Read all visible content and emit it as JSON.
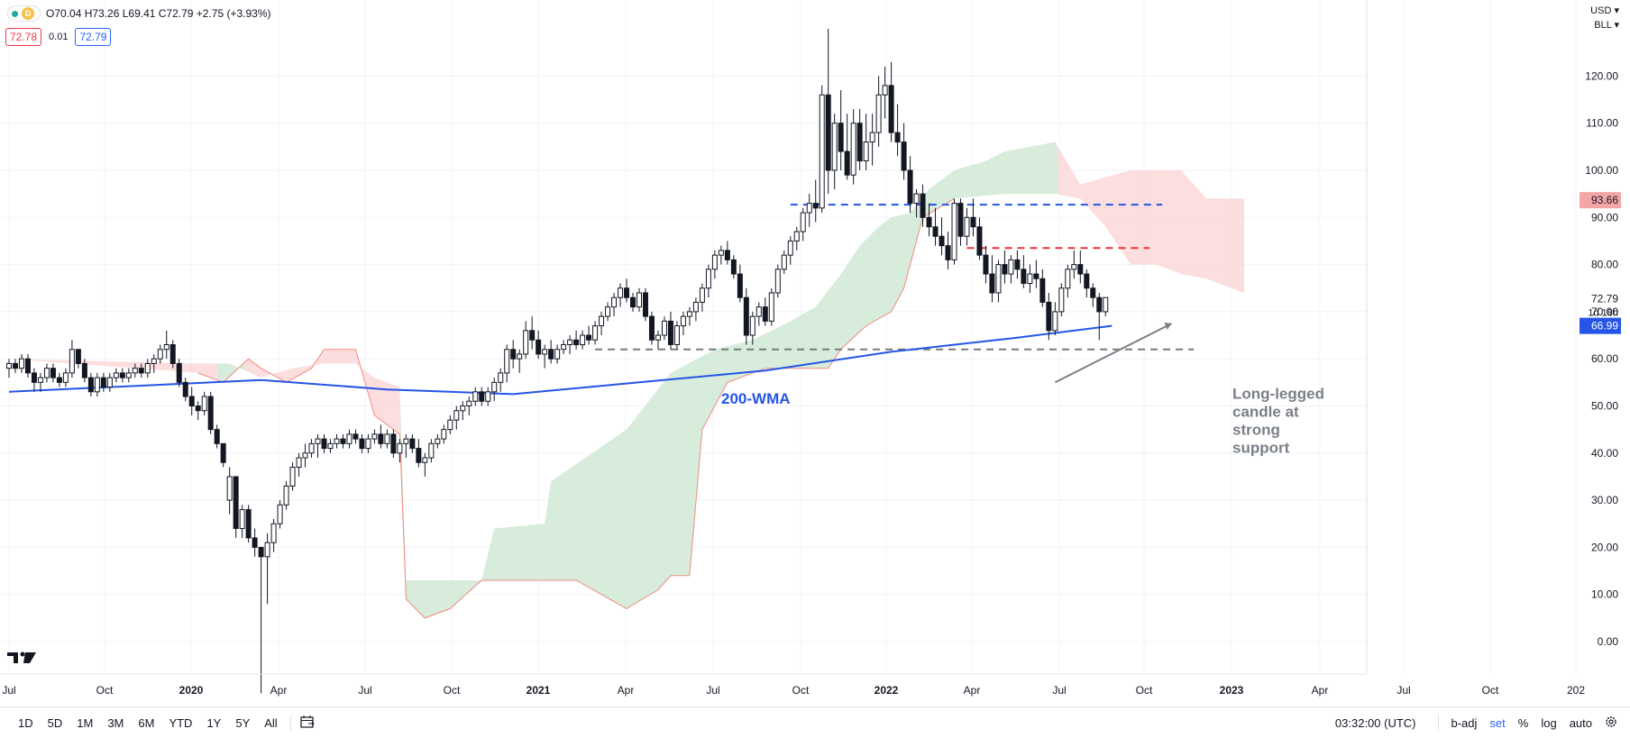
{
  "header": {
    "interval_badge": "D",
    "ohlc": "O70.04 H73.26 L69.41 C72.79 +2.75 (+3.93%)",
    "bid": "72.78",
    "spread": "0.01",
    "ask": "72.79",
    "currency": "USD",
    "unit": "BLL"
  },
  "bottom": {
    "timeframes": [
      "1D",
      "5D",
      "1M",
      "3M",
      "6M",
      "YTD",
      "1Y",
      "5Y",
      "All"
    ],
    "clock": "03:32:00 (UTC)",
    "badj": "b-adj",
    "set": "set",
    "percent": "%",
    "log": "log",
    "auto": "auto"
  },
  "colors": {
    "wma": "#2455e6",
    "bull_cloud": "#c9e6cf",
    "bear_cloud": "#fbd3d3",
    "resistance": "#e53935",
    "support_dash": "#7a7a7a",
    "blue_dash": "#2455e6",
    "annotation": "#7a7f87",
    "price_label_red": "#f4a6a6",
    "price_label_blue": "#2455e6"
  },
  "chart_data": {
    "type": "candlestick",
    "ylim": [
      -5,
      130
    ],
    "y_ticks": [
      "0.00",
      "10.00",
      "20.00",
      "30.00",
      "40.00",
      "50.00",
      "60.00",
      "70.00",
      "80.00",
      "90.00",
      "100.00",
      "110.00",
      "120.00"
    ],
    "x_ticks": [
      "Jul",
      "Oct",
      "2020",
      "Apr",
      "Jul",
      "Oct",
      "2021",
      "Apr",
      "Jul",
      "Oct",
      "2022",
      "Apr",
      "Jul",
      "Oct",
      "2023",
      "Apr",
      "Jul",
      "Oct",
      "202"
    ],
    "price_labels": [
      {
        "text": "93.66",
        "value": 93.66,
        "style": "red"
      },
      {
        "text": "72.79",
        "value": 72.79,
        "style": "plain"
      },
      {
        "text": "1d 18h",
        "value": 69.9,
        "style": "plain"
      },
      {
        "text": "66.99",
        "value": 66.99,
        "style": "blue"
      }
    ],
    "wma_label": "200-WMA",
    "annotation": [
      "Long-legged",
      "candle at",
      "strong",
      "support"
    ],
    "candles": [
      [
        0,
        58,
        60,
        56,
        59
      ],
      [
        1,
        59,
        60,
        57,
        58
      ],
      [
        2,
        58,
        61,
        57,
        60
      ],
      [
        3,
        60,
        61,
        56,
        57
      ],
      [
        4,
        57,
        58,
        53,
        55
      ],
      [
        5,
        55,
        57,
        53,
        56
      ],
      [
        6,
        56,
        59,
        55,
        58
      ],
      [
        7,
        58,
        59,
        55,
        56
      ],
      [
        8,
        56,
        57,
        54,
        55
      ],
      [
        9,
        55,
        58,
        54,
        57
      ],
      [
        10,
        57,
        64,
        56,
        62
      ],
      [
        11,
        62,
        62,
        58,
        59
      ],
      [
        12,
        59,
        60,
        55,
        56
      ],
      [
        13,
        56,
        57,
        52,
        53
      ],
      [
        14,
        53,
        57,
        52,
        56
      ],
      [
        15,
        56,
        57,
        53,
        54
      ],
      [
        16,
        54,
        57,
        53,
        56
      ],
      [
        17,
        56,
        58,
        55,
        57
      ],
      [
        18,
        57,
        58,
        55,
        56
      ],
      [
        19,
        56,
        58,
        55,
        57
      ],
      [
        20,
        57,
        59,
        56,
        58
      ],
      [
        21,
        58,
        59,
        56,
        57
      ],
      [
        22,
        57,
        60,
        56,
        59
      ],
      [
        23,
        59,
        61,
        57,
        60
      ],
      [
        24,
        60,
        63,
        59,
        62
      ],
      [
        25,
        62,
        66,
        60,
        63
      ],
      [
        26,
        63,
        64,
        58,
        59
      ],
      [
        27,
        59,
        60,
        54,
        55
      ],
      [
        28,
        55,
        56,
        51,
        52
      ],
      [
        29,
        52,
        54,
        48,
        50
      ],
      [
        30,
        50,
        51,
        47,
        49
      ],
      [
        31,
        49,
        53,
        48,
        52
      ],
      [
        32,
        52,
        53,
        44,
        45
      ],
      [
        33,
        45,
        46,
        41,
        42
      ],
      [
        34,
        42,
        42,
        37,
        38
      ],
      [
        35,
        30,
        37,
        27,
        35
      ],
      [
        36,
        35,
        35,
        22,
        24
      ],
      [
        37,
        24,
        29,
        22,
        28
      ],
      [
        38,
        28,
        29,
        21,
        22
      ],
      [
        39,
        22,
        24,
        18,
        20
      ],
      [
        40,
        20,
        20,
        -11,
        18
      ],
      [
        41,
        18,
        23,
        8,
        21
      ],
      [
        42,
        21,
        26,
        19,
        25
      ],
      [
        43,
        25,
        30,
        24,
        29
      ],
      [
        44,
        29,
        34,
        28,
        33
      ],
      [
        45,
        33,
        38,
        32,
        37
      ],
      [
        46,
        37,
        40,
        35,
        39
      ],
      [
        47,
        39,
        42,
        37,
        40
      ],
      [
        48,
        40,
        43,
        39,
        42
      ],
      [
        49,
        42,
        44,
        39,
        43
      ],
      [
        50,
        43,
        44,
        40,
        41
      ],
      [
        51,
        41,
        43,
        40,
        42
      ],
      [
        52,
        42,
        44,
        41,
        43
      ],
      [
        53,
        43,
        44,
        41,
        42
      ],
      [
        54,
        42,
        45,
        41,
        44
      ],
      [
        55,
        44,
        45,
        42,
        43
      ],
      [
        56,
        43,
        44,
        40,
        41
      ],
      [
        57,
        41,
        44,
        40,
        43
      ],
      [
        58,
        43,
        45,
        42,
        44
      ],
      [
        59,
        44,
        46,
        41,
        42
      ],
      [
        60,
        42,
        45,
        41,
        44
      ],
      [
        61,
        44,
        45,
        39,
        40
      ],
      [
        62,
        40,
        43,
        38,
        42
      ],
      [
        63,
        42,
        44,
        39,
        43
      ],
      [
        64,
        43,
        44,
        40,
        41
      ],
      [
        65,
        41,
        43,
        37,
        38
      ],
      [
        66,
        38,
        40,
        35,
        39
      ],
      [
        67,
        39,
        43,
        38,
        42
      ],
      [
        68,
        42,
        44,
        41,
        43
      ],
      [
        69,
        43,
        46,
        42,
        45
      ],
      [
        70,
        45,
        48,
        44,
        47
      ],
      [
        71,
        47,
        50,
        45,
        49
      ],
      [
        72,
        49,
        51,
        47,
        50
      ],
      [
        73,
        50,
        52,
        48,
        51
      ],
      [
        74,
        51,
        54,
        50,
        53
      ],
      [
        75,
        53,
        54,
        50,
        51
      ],
      [
        76,
        51,
        54,
        50,
        53
      ],
      [
        77,
        53,
        56,
        51,
        55
      ],
      [
        78,
        55,
        58,
        53,
        57
      ],
      [
        79,
        57,
        63,
        55,
        62
      ],
      [
        80,
        62,
        64,
        58,
        60
      ],
      [
        81,
        60,
        62,
        57,
        61
      ],
      [
        82,
        61,
        68,
        60,
        66
      ],
      [
        83,
        66,
        69,
        62,
        64
      ],
      [
        84,
        64,
        66,
        60,
        61
      ],
      [
        85,
        61,
        63,
        58,
        62
      ],
      [
        86,
        62,
        64,
        59,
        60
      ],
      [
        87,
        60,
        63,
        59,
        62
      ],
      [
        88,
        62,
        64,
        61,
        63
      ],
      [
        89,
        63,
        65,
        61,
        64
      ],
      [
        90,
        64,
        66,
        62,
        63
      ],
      [
        91,
        63,
        66,
        62,
        65
      ],
      [
        92,
        65,
        67,
        63,
        64
      ],
      [
        93,
        64,
        68,
        63,
        67
      ],
      [
        94,
        67,
        70,
        65,
        69
      ],
      [
        95,
        69,
        72,
        68,
        71
      ],
      [
        96,
        71,
        74,
        69,
        73
      ],
      [
        97,
        73,
        76,
        71,
        75
      ],
      [
        98,
        75,
        77,
        72,
        73
      ],
      [
        99,
        73,
        74,
        70,
        71
      ],
      [
        100,
        71,
        75,
        70,
        74
      ],
      [
        101,
        74,
        75,
        68,
        69
      ],
      [
        102,
        69,
        70,
        63,
        64
      ],
      [
        103,
        64,
        66,
        62,
        65
      ],
      [
        104,
        65,
        69,
        64,
        68
      ],
      [
        105,
        68,
        70,
        62,
        63
      ],
      [
        106,
        63,
        68,
        62,
        67
      ],
      [
        107,
        67,
        70,
        65,
        69
      ],
      [
        108,
        69,
        71,
        67,
        70
      ],
      [
        109,
        70,
        73,
        68,
        72
      ],
      [
        110,
        72,
        76,
        70,
        75
      ],
      [
        111,
        75,
        80,
        73,
        79
      ],
      [
        112,
        79,
        83,
        77,
        82
      ],
      [
        113,
        82,
        84,
        80,
        83
      ],
      [
        114,
        83,
        85,
        80,
        81
      ],
      [
        115,
        81,
        82,
        77,
        78
      ],
      [
        116,
        78,
        80,
        72,
        73
      ],
      [
        117,
        73,
        75,
        63,
        65
      ],
      [
        118,
        65,
        70,
        63,
        69
      ],
      [
        119,
        69,
        72,
        67,
        71
      ],
      [
        120,
        71,
        73,
        67,
        68
      ],
      [
        121,
        68,
        75,
        67,
        74
      ],
      [
        122,
        74,
        80,
        73,
        79
      ],
      [
        123,
        79,
        83,
        78,
        82
      ],
      [
        124,
        82,
        86,
        80,
        85
      ],
      [
        125,
        85,
        88,
        83,
        87
      ],
      [
        126,
        87,
        92,
        85,
        91
      ],
      [
        127,
        91,
        95,
        88,
        93
      ],
      [
        128,
        93,
        98,
        89,
        92
      ],
      [
        129,
        92,
        118,
        91,
        116
      ],
      [
        130,
        116,
        130,
        95,
        100
      ],
      [
        131,
        100,
        112,
        96,
        110
      ],
      [
        132,
        110,
        117,
        100,
        104
      ],
      [
        133,
        104,
        112,
        98,
        99
      ],
      [
        134,
        99,
        113,
        97,
        110
      ],
      [
        135,
        110,
        113,
        100,
        102
      ],
      [
        136,
        102,
        112,
        100,
        106
      ],
      [
        137,
        106,
        112,
        101,
        108
      ],
      [
        138,
        108,
        120,
        105,
        116
      ],
      [
        139,
        116,
        122,
        111,
        118
      ],
      [
        140,
        118,
        123,
        106,
        108
      ],
      [
        141,
        108,
        114,
        103,
        106
      ],
      [
        142,
        106,
        110,
        98,
        100
      ],
      [
        143,
        100,
        103,
        91,
        93
      ],
      [
        144,
        93,
        96,
        90,
        95
      ],
      [
        145,
        95,
        97,
        88,
        90
      ],
      [
        146,
        90,
        93,
        86,
        88
      ],
      [
        147,
        88,
        92,
        84,
        86
      ],
      [
        148,
        86,
        90,
        82,
        84
      ],
      [
        149,
        84,
        87,
        79,
        81
      ],
      [
        150,
        81,
        94,
        80,
        93
      ],
      [
        151,
        93,
        94,
        84,
        86
      ],
      [
        152,
        86,
        92,
        84,
        90
      ],
      [
        153,
        90,
        94,
        86,
        88
      ],
      [
        154,
        88,
        90,
        81,
        82
      ],
      [
        155,
        82,
        84,
        76,
        78
      ],
      [
        156,
        78,
        82,
        72,
        74
      ],
      [
        157,
        74,
        81,
        72,
        80
      ],
      [
        158,
        80,
        83,
        76,
        78
      ],
      [
        159,
        78,
        82,
        76,
        81
      ],
      [
        160,
        81,
        83,
        77,
        79
      ],
      [
        161,
        79,
        82,
        75,
        76
      ],
      [
        162,
        76,
        80,
        74,
        78
      ],
      [
        163,
        78,
        81,
        75,
        77
      ],
      [
        164,
        77,
        79,
        71,
        72
      ],
      [
        165,
        72,
        74,
        64,
        66
      ],
      [
        166,
        66,
        72,
        65,
        70
      ],
      [
        167,
        70,
        76,
        69,
        75
      ],
      [
        168,
        75,
        80,
        73,
        79
      ],
      [
        169,
        79,
        83,
        77,
        80
      ],
      [
        170,
        80,
        83,
        76,
        78
      ],
      [
        171,
        78,
        79,
        73,
        75
      ],
      [
        172,
        75,
        76,
        71,
        73
      ],
      [
        173,
        73,
        74,
        64,
        70
      ],
      [
        174,
        70,
        73,
        69,
        73
      ]
    ],
    "wma": [
      [
        0,
        53
      ],
      [
        40,
        55.5
      ],
      [
        60,
        53.5
      ],
      [
        80,
        52.5
      ],
      [
        100,
        55
      ],
      [
        120,
        57.5
      ],
      [
        140,
        61.5
      ],
      [
        160,
        64.5
      ],
      [
        175,
        67
      ]
    ],
    "cloud_upper": [
      [
        0,
        60
      ],
      [
        30,
        59
      ],
      [
        35,
        59
      ],
      [
        40,
        56
      ],
      [
        45,
        58
      ],
      [
        50,
        59
      ],
      [
        55,
        59
      ],
      [
        58,
        56
      ],
      [
        62,
        54
      ],
      [
        63,
        13
      ],
      [
        75,
        13
      ],
      [
        77,
        24
      ],
      [
        85,
        25
      ],
      [
        86,
        34
      ],
      [
        98,
        45
      ],
      [
        105,
        57
      ],
      [
        112,
        62
      ],
      [
        118,
        64
      ],
      [
        124,
        68
      ],
      [
        128,
        71
      ],
      [
        132,
        78
      ],
      [
        135,
        84
      ],
      [
        138,
        88
      ],
      [
        140,
        90
      ],
      [
        143,
        91
      ],
      [
        146,
        96
      ],
      [
        150,
        100
      ],
      [
        155,
        102
      ],
      [
        158,
        104
      ],
      [
        162,
        105
      ],
      [
        166,
        106
      ],
      [
        170,
        97
      ],
      [
        178,
        100
      ],
      [
        184,
        100
      ],
      [
        186,
        100
      ],
      [
        190,
        94
      ],
      [
        196,
        94
      ]
    ],
    "cloud_lower": [
      [
        0,
        60
      ],
      [
        30,
        57
      ],
      [
        34,
        55
      ],
      [
        38,
        60
      ],
      [
        40,
        58
      ],
      [
        44,
        55
      ],
      [
        48,
        58
      ],
      [
        50,
        62
      ],
      [
        55,
        62
      ],
      [
        58,
        48
      ],
      [
        62,
        44
      ],
      [
        63,
        9
      ],
      [
        66,
        5
      ],
      [
        70,
        7
      ],
      [
        75,
        13
      ],
      [
        90,
        13
      ],
      [
        98,
        7
      ],
      [
        103,
        11
      ],
      [
        105,
        14
      ],
      [
        108,
        14
      ],
      [
        110,
        45
      ],
      [
        114,
        55
      ],
      [
        120,
        58
      ],
      [
        125,
        58
      ],
      [
        130,
        58
      ],
      [
        132,
        62
      ],
      [
        136,
        67
      ],
      [
        140,
        70
      ],
      [
        142,
        75
      ],
      [
        145,
        90
      ],
      [
        150,
        94
      ],
      [
        158,
        95
      ],
      [
        166,
        95
      ],
      [
        170,
        94
      ],
      [
        174,
        88
      ],
      [
        178,
        80
      ],
      [
        182,
        80
      ],
      [
        186,
        78
      ],
      [
        190,
        77
      ],
      [
        196,
        74
      ]
    ],
    "cloud_bull_ranges": [
      [
        33,
        37
      ],
      [
        62,
        147
      ],
      [
        143,
        166
      ]
    ],
    "levels": [
      {
        "x0": 124,
        "x1": 183,
        "y": 92.7,
        "style": "blue"
      },
      {
        "x0": 152,
        "x1": 181,
        "y": 83.5,
        "style": "red"
      },
      {
        "x0": 93,
        "x1": 188,
        "y": 62.0,
        "style": "grey"
      }
    ]
  }
}
